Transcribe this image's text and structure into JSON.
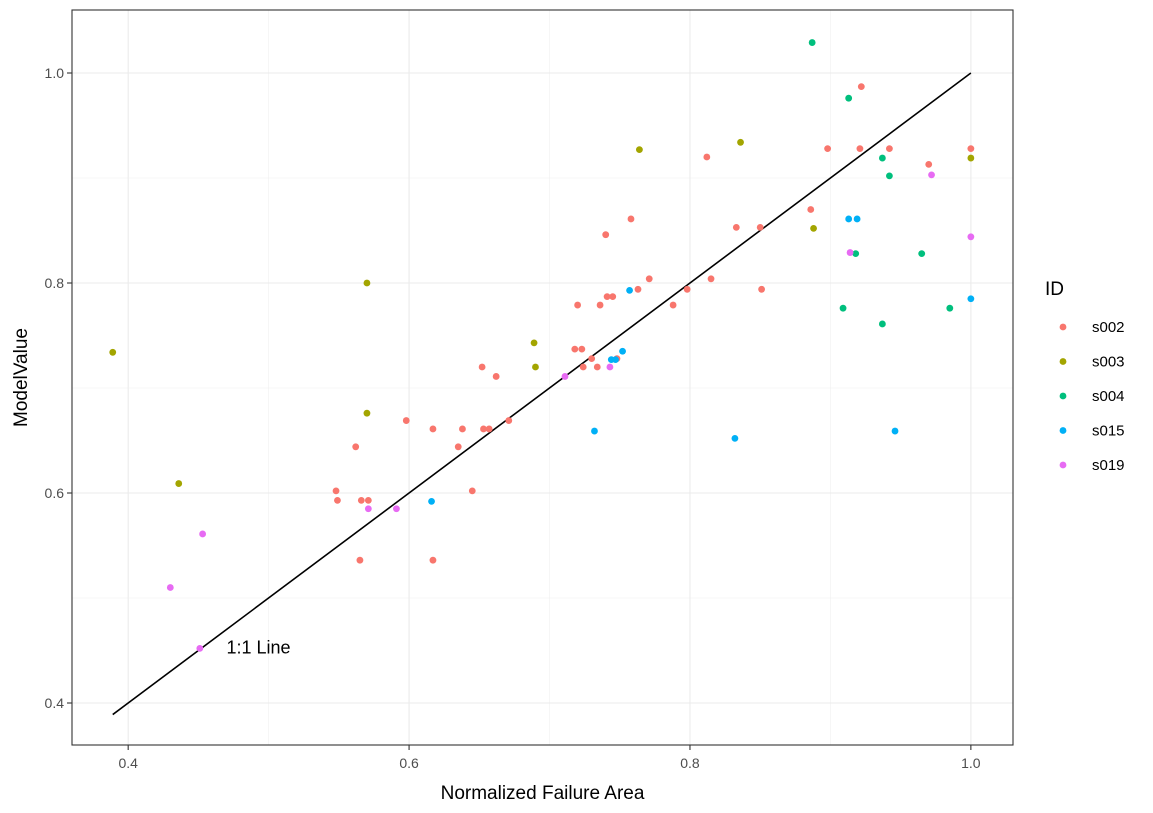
{
  "chart_data": {
    "type": "scatter",
    "xlabel": "Normalized Failure Area",
    "ylabel": "ModelValue",
    "xlim": [
      0.36,
      1.03
    ],
    "ylim": [
      0.36,
      1.06
    ],
    "x_ticks": [
      0.4,
      0.6,
      0.8,
      1.0
    ],
    "x_tick_labels": [
      "0.4",
      "0.6",
      "0.8",
      "1.0"
    ],
    "y_ticks": [
      0.4,
      0.6,
      0.8,
      1.0
    ],
    "y_tick_labels": [
      "0.4",
      "0.6",
      "0.8",
      "1.0"
    ],
    "grid": true,
    "legend_title": "ID",
    "legend_position": "right",
    "reference_line": {
      "label": "1:1 Line",
      "x": [
        0.389,
        1.0
      ],
      "y": [
        0.389,
        1.0
      ],
      "label_at": [
        0.47,
        0.447
      ]
    },
    "series": [
      {
        "name": "s002",
        "color": "#F8766D",
        "points": [
          [
            0.548,
            0.602
          ],
          [
            0.549,
            0.593
          ],
          [
            0.562,
            0.644
          ],
          [
            0.565,
            0.536
          ],
          [
            0.566,
            0.593
          ],
          [
            0.571,
            0.593
          ],
          [
            0.598,
            0.669
          ],
          [
            0.617,
            0.661
          ],
          [
            0.617,
            0.536
          ],
          [
            0.635,
            0.644
          ],
          [
            0.638,
            0.661
          ],
          [
            0.645,
            0.602
          ],
          [
            0.652,
            0.72
          ],
          [
            0.653,
            0.661
          ],
          [
            0.657,
            0.661
          ],
          [
            0.662,
            0.711
          ],
          [
            0.671,
            0.669
          ],
          [
            0.718,
            0.737
          ],
          [
            0.72,
            0.779
          ],
          [
            0.723,
            0.737
          ],
          [
            0.724,
            0.72
          ],
          [
            0.73,
            0.728
          ],
          [
            0.734,
            0.72
          ],
          [
            0.736,
            0.779
          ],
          [
            0.74,
            0.846
          ],
          [
            0.741,
            0.787
          ],
          [
            0.745,
            0.787
          ],
          [
            0.748,
            0.728
          ],
          [
            0.758,
            0.861
          ],
          [
            0.763,
            0.794
          ],
          [
            0.771,
            0.804
          ],
          [
            0.788,
            0.779
          ],
          [
            0.798,
            0.794
          ],
          [
            0.812,
            0.92
          ],
          [
            0.815,
            0.804
          ],
          [
            0.833,
            0.853
          ],
          [
            0.85,
            0.853
          ],
          [
            0.851,
            0.794
          ],
          [
            0.886,
            0.87
          ],
          [
            0.898,
            0.928
          ],
          [
            0.921,
            0.928
          ],
          [
            0.922,
            0.987
          ],
          [
            0.942,
            0.928
          ],
          [
            0.97,
            0.913
          ],
          [
            1.0,
            0.928
          ]
        ]
      },
      {
        "name": "s003",
        "color": "#A3A500",
        "points": [
          [
            0.389,
            0.734
          ],
          [
            0.436,
            0.609
          ],
          [
            0.57,
            0.8
          ],
          [
            0.57,
            0.676
          ],
          [
            0.689,
            0.743
          ],
          [
            0.69,
            0.72
          ],
          [
            0.764,
            0.927
          ],
          [
            0.836,
            0.934
          ],
          [
            0.888,
            0.852
          ],
          [
            1.0,
            0.919
          ]
        ]
      },
      {
        "name": "s004",
        "color": "#00BF7D",
        "points": [
          [
            0.887,
            1.029
          ],
          [
            0.909,
            0.776
          ],
          [
            0.913,
            0.976
          ],
          [
            0.918,
            0.828
          ],
          [
            0.937,
            0.761
          ],
          [
            0.937,
            0.919
          ],
          [
            0.942,
            0.902
          ],
          [
            0.965,
            0.828
          ],
          [
            0.985,
            0.776
          ]
        ]
      },
      {
        "name": "s015",
        "color": "#00B0F6",
        "points": [
          [
            0.616,
            0.592
          ],
          [
            0.732,
            0.659
          ],
          [
            0.744,
            0.727
          ],
          [
            0.747,
            0.727
          ],
          [
            0.752,
            0.735
          ],
          [
            0.757,
            0.793
          ],
          [
            0.832,
            0.652
          ],
          [
            0.913,
            0.861
          ],
          [
            0.919,
            0.861
          ],
          [
            0.946,
            0.659
          ],
          [
            1.0,
            0.785
          ]
        ]
      },
      {
        "name": "s019",
        "color": "#E76BF3",
        "points": [
          [
            0.43,
            0.51
          ],
          [
            0.451,
            0.452
          ],
          [
            0.453,
            0.561
          ],
          [
            0.571,
            0.585
          ],
          [
            0.591,
            0.585
          ],
          [
            0.711,
            0.711
          ],
          [
            0.743,
            0.72
          ],
          [
            0.914,
            0.829
          ],
          [
            0.972,
            0.903
          ],
          [
            1.0,
            0.844
          ]
        ]
      }
    ]
  }
}
